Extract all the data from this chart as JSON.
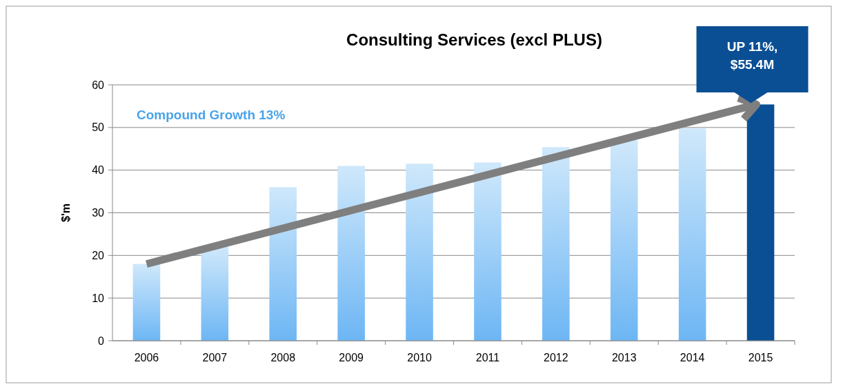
{
  "chart_data": {
    "type": "bar",
    "title": "Consulting Services (excl PLUS)",
    "ylabel": "$'m",
    "categories": [
      "2006",
      "2007",
      "2008",
      "2009",
      "2010",
      "2011",
      "2012",
      "2013",
      "2014",
      "2015"
    ],
    "values": [
      18.0,
      22.0,
      36.0,
      41.0,
      41.5,
      41.8,
      45.4,
      47.0,
      49.8,
      55.4
    ],
    "colors": [
      "#9fd0f7",
      "#9fd0f7",
      "#9fd0f7",
      "#9fd0f7",
      "#9fd0f7",
      "#9fd0f7",
      "#9fd0f7",
      "#9fd0f7",
      "#9fd0f7",
      "#0a4f94"
    ],
    "ylim": [
      0,
      60
    ],
    "yticks": [
      0,
      10,
      20,
      30,
      40,
      50,
      60
    ],
    "grid": "y",
    "annotations": [
      "Compound Growth 13%",
      {
        "text": "UP 11%, $55.4M",
        "x": "2015",
        "y": 55.4
      }
    ]
  }
}
